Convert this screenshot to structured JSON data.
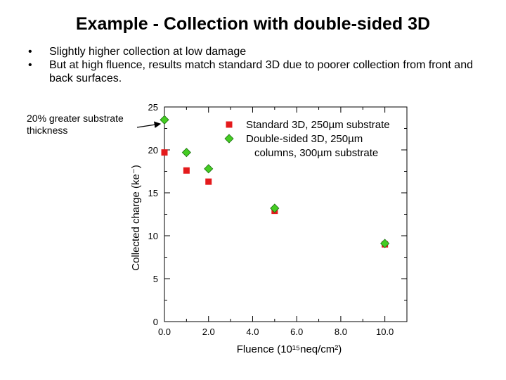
{
  "slide": {
    "title": "Example - Collection with double-sided 3D",
    "bullets": [
      "Slightly higher collection at low damage",
      "But at high fluence, results match standard 3D due to poorer collection from front and back surfaces."
    ],
    "callout": "20% greater substrate thickness"
  },
  "chart_data": {
    "type": "scatter",
    "xlabel": "Fluence (10¹⁵neq/cm²)",
    "ylabel": "Collected charge (ke⁻)",
    "xlim": [
      0,
      11
    ],
    "ylim": [
      0,
      25
    ],
    "xticks": [
      "0.0",
      "2.0",
      "4.0",
      "6.0",
      "8.0",
      "10.0"
    ],
    "yticks": [
      "0",
      "5",
      "10",
      "15",
      "20",
      "25"
    ],
    "grid": false,
    "legend_position": "top-right",
    "series": [
      {
        "name": "Standard 3D, 250µm substrate",
        "marker": "square",
        "color": "#e41a1c",
        "points": [
          [
            0,
            19.7
          ],
          [
            1,
            17.6
          ],
          [
            2,
            16.3
          ],
          [
            5,
            12.9
          ],
          [
            10,
            9.0
          ]
        ]
      },
      {
        "name": "Double-sided 3D, 250µm columns, 300µm substrate",
        "marker": "diamond",
        "color": "#44cc22",
        "points": [
          [
            0,
            23.5
          ],
          [
            1,
            19.7
          ],
          [
            2,
            17.8
          ],
          [
            5,
            13.2
          ],
          [
            10,
            9.1
          ]
        ]
      }
    ]
  }
}
